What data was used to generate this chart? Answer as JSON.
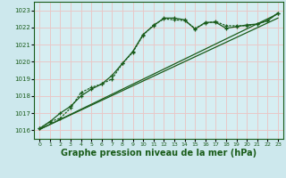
{
  "bg_color": "#cde8ed",
  "plot_bg_color": "#d6eef2",
  "grid_color": "#e8c8c8",
  "line_color": "#1a5c1a",
  "xlabel": "Graphe pression niveau de la mer (hPa)",
  "xlabel_fontsize": 7,
  "xlim": [
    -0.5,
    23.5
  ],
  "ylim": [
    1015.5,
    1023.5
  ],
  "yticks": [
    1016,
    1017,
    1018,
    1019,
    1020,
    1021,
    1022,
    1023
  ],
  "xticks": [
    0,
    1,
    2,
    3,
    4,
    5,
    6,
    7,
    8,
    9,
    10,
    11,
    12,
    13,
    14,
    15,
    16,
    17,
    18,
    19,
    20,
    21,
    22,
    23
  ],
  "series_curvy": {
    "x": [
      0,
      1,
      2,
      3,
      4,
      5,
      6,
      7,
      8,
      9,
      10,
      11,
      12,
      13,
      14,
      15,
      16,
      17,
      18,
      19,
      20,
      21,
      22,
      23
    ],
    "y": [
      1016.1,
      1016.5,
      1017.0,
      1017.4,
      1018.0,
      1018.4,
      1018.7,
      1019.2,
      1019.9,
      1020.6,
      1021.6,
      1022.1,
      1022.55,
      1022.55,
      1022.45,
      1021.9,
      1022.3,
      1022.3,
      1021.95,
      1022.05,
      1022.15,
      1022.2,
      1022.4,
      1022.85
    ]
  },
  "series_dotted": {
    "x": [
      0,
      1,
      2,
      3,
      4,
      5,
      6,
      7,
      8,
      9,
      10,
      11,
      12,
      13,
      14,
      15,
      16,
      17,
      18,
      19,
      20,
      21,
      22,
      23
    ],
    "y": [
      1016.1,
      1016.5,
      1016.7,
      1017.3,
      1018.2,
      1018.5,
      1018.7,
      1019.0,
      1019.9,
      1020.55,
      1021.55,
      1022.15,
      1022.5,
      1022.45,
      1022.4,
      1021.95,
      1022.25,
      1022.35,
      1022.1,
      1022.1,
      1022.1,
      1022.2,
      1022.4,
      1022.85
    ]
  },
  "series_linear1": {
    "x": [
      0,
      23
    ],
    "y": [
      1016.05,
      1022.8
    ]
  },
  "series_linear2": {
    "x": [
      0,
      23
    ],
    "y": [
      1016.05,
      1022.55
    ]
  }
}
